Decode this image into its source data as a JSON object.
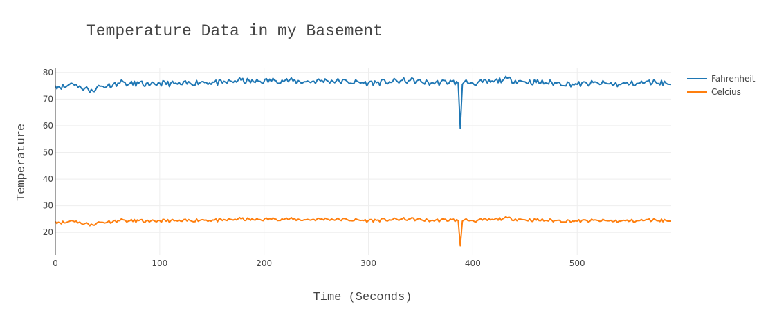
{
  "chart_data": {
    "type": "line",
    "title": "Temperature Data in my Basement",
    "xlabel": "Time (Seconds)",
    "ylabel": "Temperature",
    "xlim": [
      0,
      590
    ],
    "ylim": [
      11.5,
      81.5
    ],
    "x_ticks": [
      0,
      100,
      200,
      300,
      400,
      500
    ],
    "y_ticks": [
      20,
      30,
      40,
      50,
      60,
      70,
      80
    ],
    "grid": true,
    "legend_position": "top-right",
    "series": [
      {
        "name": "Fahrenheit",
        "color": "#1f77b4",
        "x": [
          0,
          10,
          15,
          20,
          25,
          30,
          33,
          40,
          50,
          60,
          65,
          70,
          80,
          90,
          100,
          120,
          140,
          160,
          175,
          190,
          210,
          220,
          240,
          260,
          280,
          300,
          320,
          340,
          360,
          380,
          386,
          388,
          390,
          392,
          400,
          420,
          430,
          450,
          480,
          500,
          520,
          540,
          560,
          575,
          585,
          590
        ],
        "y": [
          75,
          74.5,
          76,
          75.5,
          74,
          74.5,
          72.5,
          74.5,
          75,
          76,
          76.5,
          75.5,
          76,
          75,
          76,
          75.5,
          76.5,
          76,
          77,
          76.5,
          77,
          77,
          76.5,
          77,
          76.5,
          76,
          76.5,
          77,
          76,
          76.5,
          76,
          59,
          75.5,
          76.5,
          76,
          76.5,
          77.5,
          76.5,
          76,
          75.5,
          76,
          75.5,
          76,
          76.5,
          76,
          75.5
        ]
      },
      {
        "name": "Celcius",
        "color": "#ff7f0e",
        "x": [
          0,
          10,
          15,
          20,
          25,
          30,
          33,
          40,
          50,
          60,
          65,
          70,
          80,
          90,
          100,
          120,
          140,
          160,
          175,
          190,
          210,
          220,
          240,
          260,
          280,
          300,
          320,
          340,
          360,
          380,
          386,
          388,
          390,
          392,
          400,
          420,
          430,
          450,
          480,
          500,
          520,
          540,
          560,
          575,
          585,
          590
        ],
        "y": [
          24,
          23.6,
          24.4,
          24.2,
          23.3,
          23.6,
          22.5,
          23.6,
          23.9,
          24.4,
          24.7,
          24.2,
          24.4,
          23.9,
          24.4,
          24.2,
          24.7,
          24.4,
          25,
          24.7,
          25,
          25,
          24.7,
          25,
          24.7,
          24.4,
          24.7,
          25,
          24.4,
          24.7,
          24.4,
          15,
          24.2,
          24.7,
          24.4,
          24.7,
          25.3,
          24.7,
          24.4,
          24.2,
          24.4,
          24.2,
          24.4,
          24.7,
          24.4,
          24.2
        ]
      }
    ]
  }
}
